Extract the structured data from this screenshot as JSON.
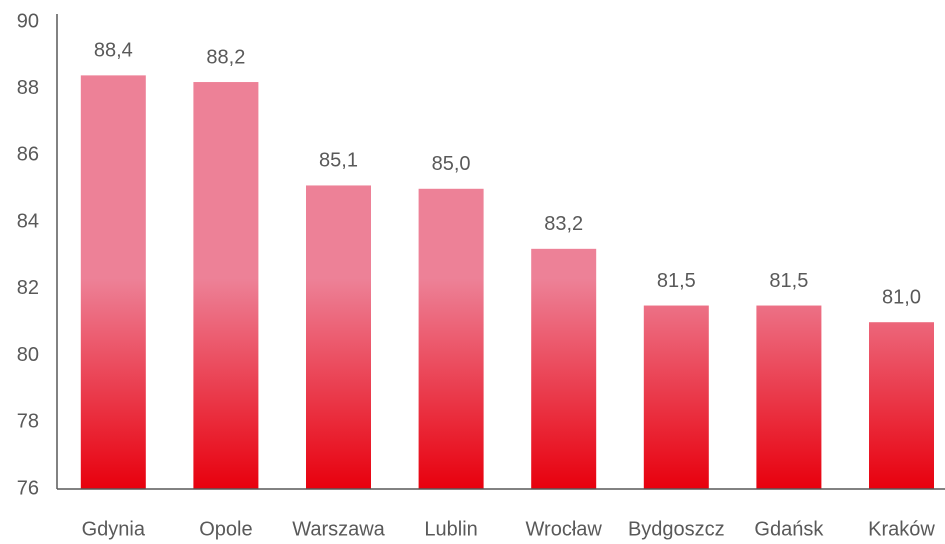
{
  "chart_data": {
    "type": "bar",
    "categories": [
      "Gdynia",
      "Opole",
      "Warszawa",
      "Lublin",
      "Wrocław",
      "Bydgoszcz",
      "Gdańsk",
      "Kraków"
    ],
    "values": [
      88.4,
      88.2,
      85.1,
      85.0,
      83.2,
      81.5,
      81.5,
      81.0
    ],
    "value_labels": [
      "88,4",
      "88,2",
      "85,1",
      "85,0",
      "83,2",
      "81,5",
      "81,5",
      "81,0"
    ],
    "color": "#ed8197",
    "gradient_color": "#e8000d",
    "ylim": [
      76,
      90
    ],
    "yticks": [
      76,
      78,
      80,
      82,
      84,
      86,
      88,
      90
    ],
    "grid": false
  }
}
